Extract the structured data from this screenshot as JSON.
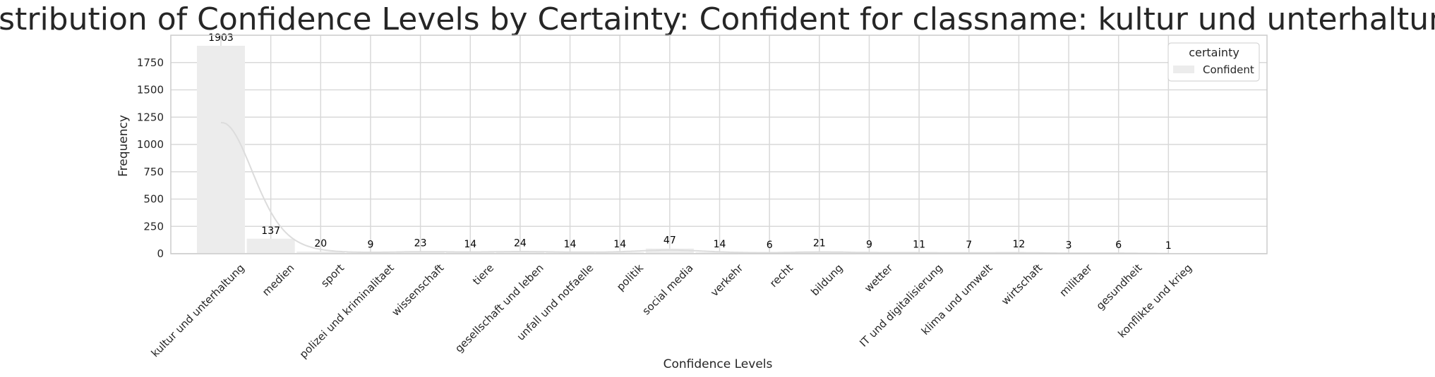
{
  "chart_data": {
    "type": "bar",
    "title": "Distribution of Confidence Levels by Certainty: Confident for classname: kultur und unterhaltung",
    "xlabel": "Confidence Levels",
    "ylabel": "Frequency",
    "categories": [
      "kultur und unterhaltung",
      "medien",
      "sport",
      "polizei und kriminalitaet",
      "wissenschaft",
      "tiere",
      "gesellschaft und leben",
      "unfall und notfaelle",
      "politik",
      "social media",
      "verkehr",
      "recht",
      "bildung",
      "wetter",
      "IT und digitalisierung",
      "klima und umwelt",
      "wirtschaft",
      "militaer",
      "gesundheit",
      "konflikte und krieg"
    ],
    "series": [
      {
        "name": "Confident",
        "values": [
          1903,
          137,
          20,
          9,
          23,
          14,
          24,
          14,
          14,
          47,
          14,
          6,
          21,
          9,
          11,
          7,
          12,
          3,
          6,
          1
        ],
        "labels": [
          "1903",
          "137",
          "20",
          "9",
          "23",
          "14",
          "24",
          "14",
          "14",
          "47",
          "14",
          "6",
          "21",
          "9",
          "11",
          "7",
          "12",
          "3",
          "6",
          "1"
        ]
      }
    ],
    "kde_curve": true,
    "ylim": [
      0,
      2000
    ],
    "yticks": [
      "0",
      "250",
      "500",
      "750",
      "1000",
      "1250",
      "1500",
      "1750"
    ],
    "grid": true,
    "legend": {
      "title": "certainty",
      "position": "top-right"
    },
    "colors": {
      "bar": "#ececec",
      "curve": "#dcdcdc",
      "grid": "#d9d9d9",
      "frame": "#cccccc"
    }
  }
}
